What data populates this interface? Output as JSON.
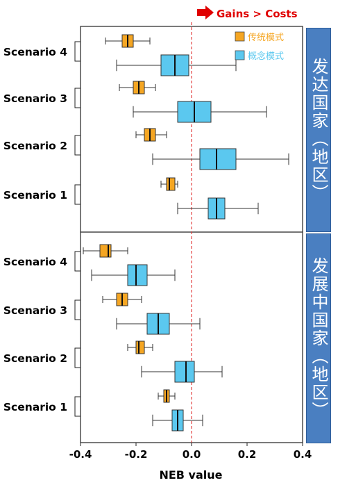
{
  "chart_data": {
    "type": "boxplot",
    "annotation": "Gains > Costs",
    "xlabel": "NEB value",
    "xlim": [
      -0.4,
      0.4
    ],
    "xticks": [
      -0.4,
      -0.2,
      0.0,
      0.2,
      0.4
    ],
    "xtick_labels": [
      "-0.4",
      "-0.2",
      "0.0",
      "0.2",
      "0.4"
    ],
    "reference_line_x": 0.0,
    "legend": [
      {
        "name": "传统模式",
        "color": "#f5a623"
      },
      {
        "name": "概念模式",
        "color": "#5bc8ef"
      }
    ],
    "legend_position": "top-right",
    "panels": [
      {
        "label": "发达国家（地区）",
        "scenarios": [
          {
            "name": "Scenario 4",
            "boxes": [
              {
                "series": "传统模式",
                "whisker_low": -0.31,
                "q1": -0.25,
                "median": -0.23,
                "q3": -0.21,
                "whisker_high": -0.15
              },
              {
                "series": "概念模式",
                "whisker_low": -0.27,
                "q1": -0.11,
                "median": -0.06,
                "q3": -0.01,
                "whisker_high": 0.16
              }
            ]
          },
          {
            "name": "Scenario 3",
            "boxes": [
              {
                "series": "传统模式",
                "whisker_low": -0.26,
                "q1": -0.21,
                "median": -0.19,
                "q3": -0.17,
                "whisker_high": -0.13
              },
              {
                "series": "概念模式",
                "whisker_low": -0.21,
                "q1": -0.05,
                "median": 0.01,
                "q3": 0.07,
                "whisker_high": 0.27
              }
            ]
          },
          {
            "name": "Scenario 2",
            "boxes": [
              {
                "series": "传统模式",
                "whisker_low": -0.2,
                "q1": -0.17,
                "median": -0.15,
                "q3": -0.13,
                "whisker_high": -0.09
              },
              {
                "series": "概念模式",
                "whisker_low": -0.14,
                "q1": 0.03,
                "median": 0.09,
                "q3": 0.16,
                "whisker_high": 0.35
              }
            ]
          },
          {
            "name": "Scenario 1",
            "boxes": [
              {
                "series": "传统模式",
                "whisker_low": -0.11,
                "q1": -0.09,
                "median": -0.08,
                "q3": -0.06,
                "whisker_high": -0.05
              },
              {
                "series": "概念模式",
                "whisker_low": -0.05,
                "q1": 0.06,
                "median": 0.09,
                "q3": 0.12,
                "whisker_high": 0.24
              }
            ]
          }
        ]
      },
      {
        "label": "发展中国家（地区）",
        "scenarios": [
          {
            "name": "Scenario 4",
            "boxes": [
              {
                "series": "传统模式",
                "whisker_low": -0.39,
                "q1": -0.33,
                "median": -0.3,
                "q3": -0.29,
                "whisker_high": -0.23
              },
              {
                "series": "概念模式",
                "whisker_low": -0.36,
                "q1": -0.23,
                "median": -0.2,
                "q3": -0.16,
                "whisker_high": -0.06
              }
            ]
          },
          {
            "name": "Scenario 3",
            "boxes": [
              {
                "series": "传统模式",
                "whisker_low": -0.32,
                "q1": -0.27,
                "median": -0.25,
                "q3": -0.23,
                "whisker_high": -0.18
              },
              {
                "series": "概念模式",
                "whisker_low": -0.27,
                "q1": -0.16,
                "median": -0.12,
                "q3": -0.08,
                "whisker_high": 0.03
              }
            ]
          },
          {
            "name": "Scenario 2",
            "boxes": [
              {
                "series": "传统模式",
                "whisker_low": -0.23,
                "q1": -0.2,
                "median": -0.19,
                "q3": -0.17,
                "whisker_high": -0.14
              },
              {
                "series": "概念模式",
                "whisker_low": -0.18,
                "q1": -0.06,
                "median": -0.02,
                "q3": 0.01,
                "whisker_high": 0.11
              }
            ]
          },
          {
            "name": "Scenario 1",
            "boxes": [
              {
                "series": "传统模式",
                "whisker_low": -0.12,
                "q1": -0.1,
                "median": -0.09,
                "q3": -0.08,
                "whisker_high": -0.06
              },
              {
                "series": "概念模式",
                "whisker_low": -0.14,
                "q1": -0.07,
                "median": -0.05,
                "q3": -0.03,
                "whisker_high": 0.04
              }
            ]
          }
        ]
      }
    ]
  }
}
